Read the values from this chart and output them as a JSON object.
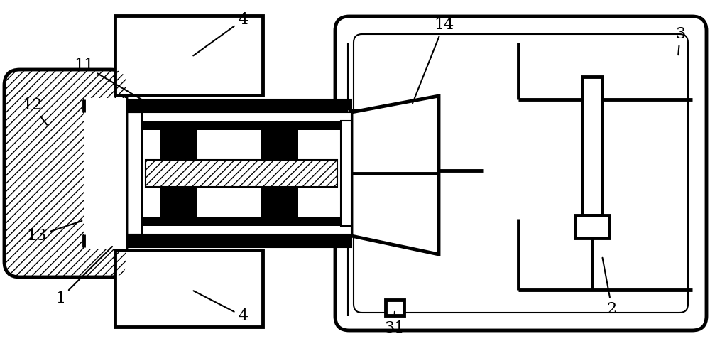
{
  "bg_color": "#ffffff",
  "lc": "#000000",
  "lw": 3.5,
  "lw2": 1.5,
  "fs": 16
}
